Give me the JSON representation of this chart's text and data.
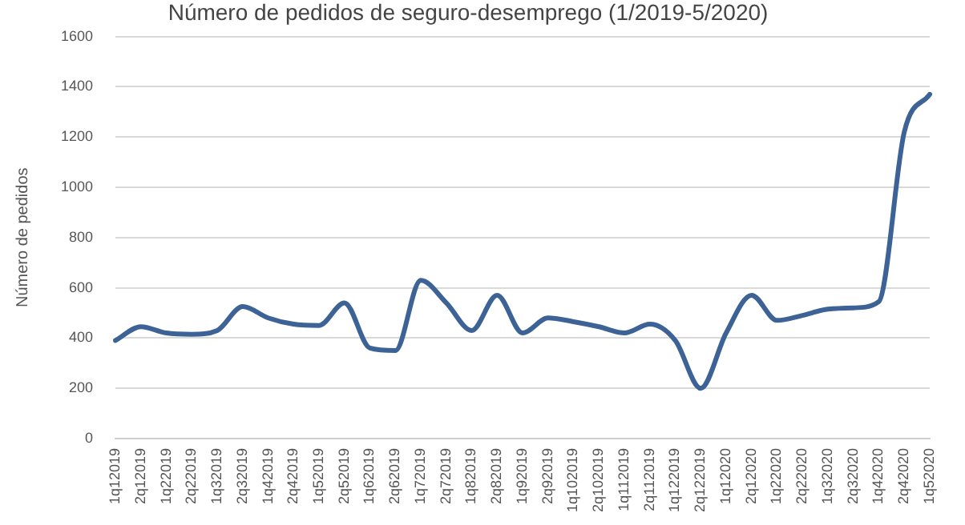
{
  "chart_data": {
    "type": "line",
    "title": "Número de pedidos de seguro-desemprego (1/2019-5/2020)",
    "ylabel": "Número de pedidos",
    "categories": [
      "1q12019",
      "2q12019",
      "1q22019",
      "2q22019",
      "1q32019",
      "2q32019",
      "1q42019",
      "2q42019",
      "1q52019",
      "2q52019",
      "1q62019",
      "2q62019",
      "1q72019",
      "2q72019",
      "1q82019",
      "2q82019",
      "1q92019",
      "2q92019",
      "1q102019",
      "2q102019",
      "1q112019",
      "2q112019",
      "1q122019",
      "2q122019",
      "1q12020",
      "2q12020",
      "1q22020",
      "2q22020",
      "1q32020",
      "2q32020",
      "1q42020",
      "2q42020",
      "1q52020"
    ],
    "series": [
      {
        "color": "#3d6296",
        "values": [
          390,
          445,
          420,
          415,
          430,
          525,
          480,
          455,
          450,
          540,
          360,
          350,
          630,
          540,
          430,
          570,
          420,
          480,
          465,
          445,
          420,
          455,
          390,
          200,
          420,
          570,
          470,
          490,
          515,
          520,
          545,
          1220,
          1370
        ]
      }
    ],
    "ylim": [
      0,
      1600
    ],
    "yticks": [
      0,
      200,
      400,
      600,
      800,
      1000,
      1200,
      1400,
      1600
    ],
    "grid": "y",
    "legend": false,
    "marker": "none",
    "line_style": "solid"
  }
}
